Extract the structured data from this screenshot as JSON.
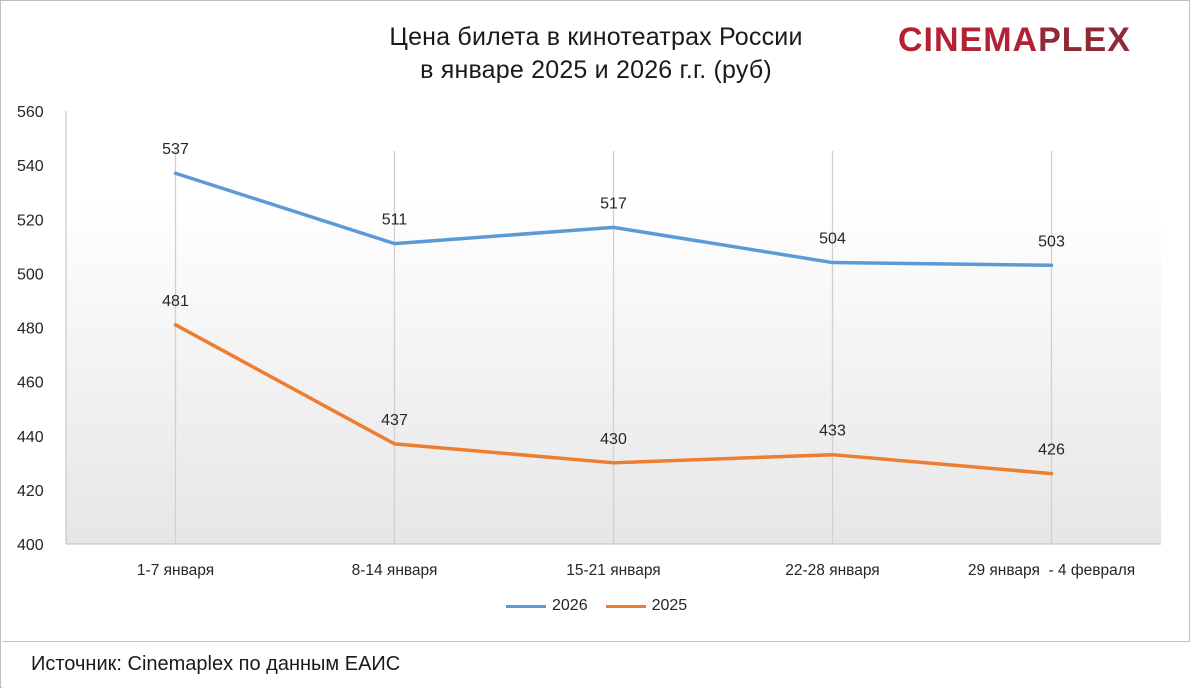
{
  "chart_data": {
    "type": "line",
    "title_lines": [
      "Цена билета в кинотеатрах России",
      "в январе 2025 и 2026 г.г. (руб)"
    ],
    "categories": [
      "1-7 января",
      "8-14 января",
      "15-21 января",
      "22-28 января",
      "29 января  - 4 февраля"
    ],
    "series": [
      {
        "name": "2026",
        "color": "#5b9bd5",
        "values": [
          537,
          511,
          517,
          504,
          503
        ]
      },
      {
        "name": "2025",
        "color": "#ed7d31",
        "values": [
          481,
          437,
          430,
          433,
          426
        ]
      }
    ],
    "ylim": [
      400,
      560
    ],
    "yticks": [
      "400",
      "420",
      "440",
      "460",
      "480",
      "500",
      "520",
      "540",
      "560"
    ],
    "xlabel": "",
    "ylabel": "",
    "grid": "vertical",
    "legend_position": "bottom"
  },
  "logo": {
    "part1": "CINEMA",
    "part2": "PLEX",
    "color1": "#b22234",
    "color2": "#8c2a36"
  },
  "source": "Источник: Cinemaplex по данным ЕАИС"
}
